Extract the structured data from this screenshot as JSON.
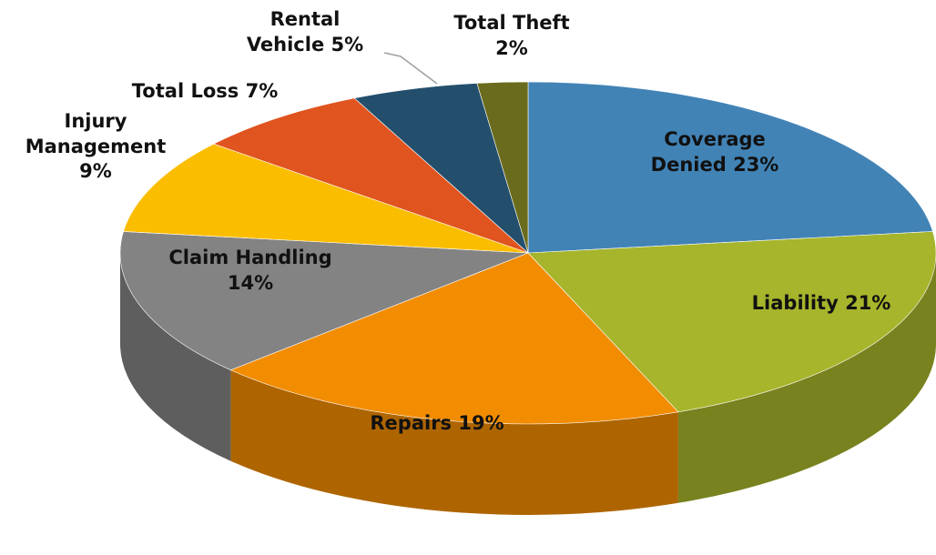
{
  "chart_data": {
    "type": "pie",
    "categories": [
      "Coverage Denied",
      "Liability",
      "Repairs",
      "Claim Handling",
      "Injury Management",
      "Total Loss",
      "Rental Vehicle",
      "Total Theft"
    ],
    "values": [
      23,
      21,
      19,
      14,
      9,
      7,
      5,
      2
    ],
    "value_labels": [
      "23%",
      "21%",
      "19%",
      "14%",
      "9%",
      "7%",
      "5%",
      "2%"
    ],
    "colors": [
      "#4283b6",
      "#a6b52b",
      "#f28c00",
      "#838383",
      "#fbbd00",
      "#e0541f",
      "#234f6c",
      "#6a6b1c"
    ]
  }
}
